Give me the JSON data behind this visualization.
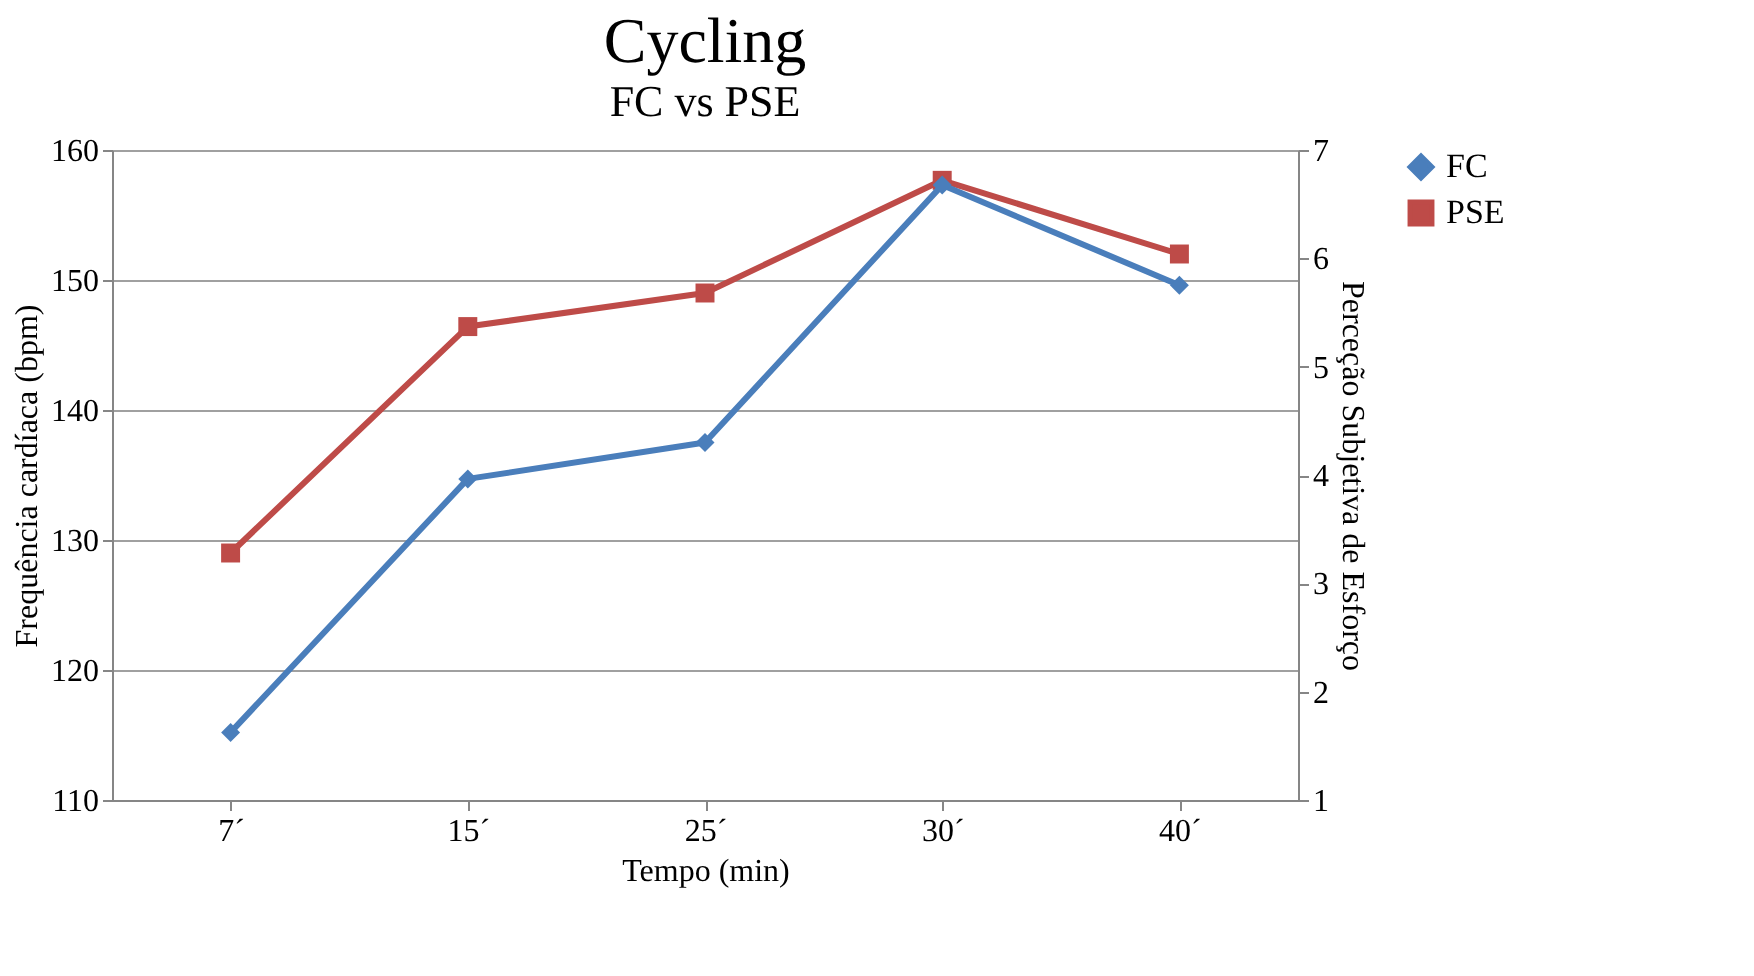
{
  "chart_data": {
    "type": "line",
    "title": "Cycling",
    "subtitle": "FC vs PSE",
    "xlabel": "Tempo (min)",
    "ylabel": "Frequência cardíaca (bpm)",
    "y2label": "Perceção Subjetiva de Esforço",
    "categories": [
      "7´",
      "15´",
      "25´",
      "30´",
      "40´"
    ],
    "series": [
      {
        "name": "FC",
        "color": "#4a7ebb",
        "marker": "diamond",
        "values": [
          115.2,
          134.7,
          137.5,
          157.3,
          149.6
        ]
      },
      {
        "name": "PSE",
        "color": "#be4b48",
        "marker": "square",
        "axis": "y2",
        "values": [
          3.28,
          5.37,
          5.68,
          6.72,
          6.04
        ]
      }
    ],
    "ylim": [
      110,
      160
    ],
    "yticks": [
      110,
      120,
      130,
      140,
      150,
      160
    ],
    "y2lim": [
      1,
      7
    ],
    "y2ticks": [
      1,
      2,
      3,
      4,
      5,
      6,
      7
    ],
    "grid": "y",
    "legend": "right",
    "line_style": "solid"
  }
}
